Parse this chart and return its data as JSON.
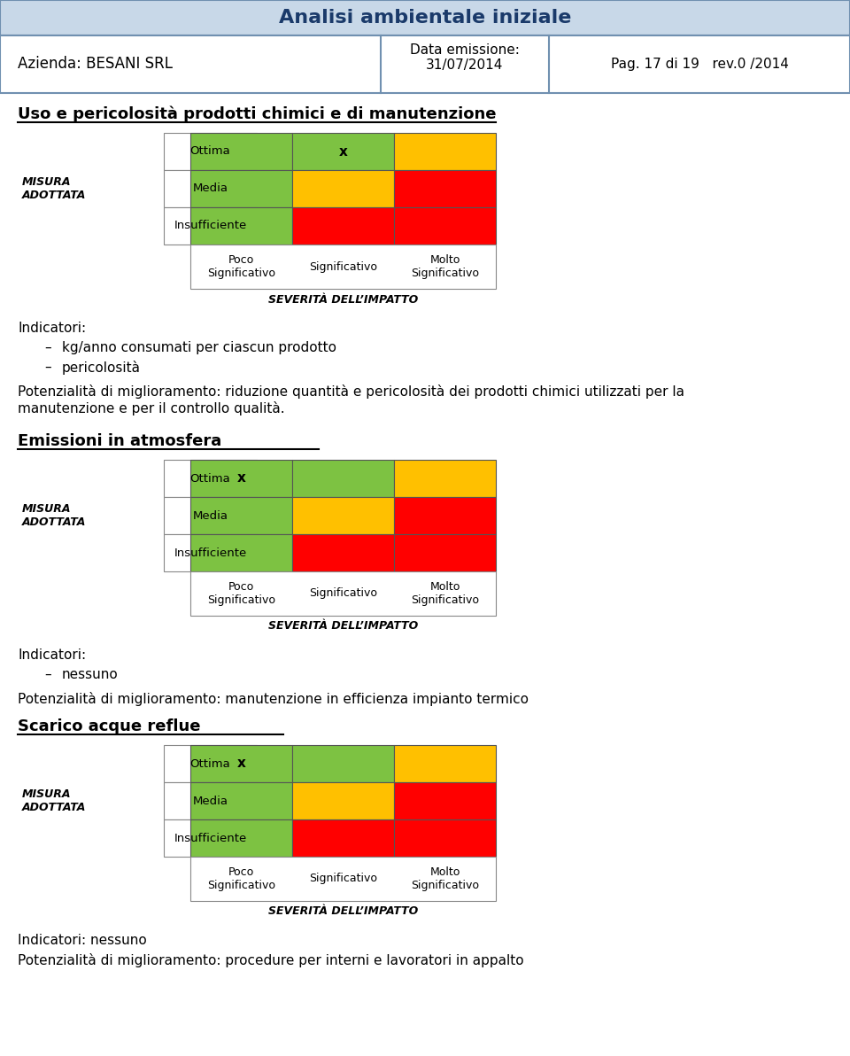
{
  "title": "Analisi ambientale iniziale",
  "header_bg": "#c8d8e8",
  "company": "Azienda: BESANI SRL",
  "date_label": "Data emissione:\n31/07/2014",
  "page_label": "Pag. 17 di 19   rev.0 /2014",
  "section1_title": "Uso e pericolosità prodotti chimici e di manutenzione",
  "section2_title": "Emissioni in atmosfera",
  "section3_title": "Scarico acque reflue",
  "misura_label": "MISURA\nADOTTATA",
  "severita_label": "SEVERITÀ DELL’IMPATTO",
  "row_labels": [
    "Ottima",
    "Media",
    "Insufficiente"
  ],
  "col_labels": [
    "Poco\nSignificativo",
    "Significativo",
    "Molto\nSignificativo"
  ],
  "green": "#7dc242",
  "yellow": "#ffc000",
  "red": "#ff0000",
  "white": "#ffffff",
  "grid1": [
    [
      "green",
      "green_x",
      "yellow"
    ],
    [
      "green",
      "yellow",
      "red"
    ],
    [
      "green",
      "red",
      "red"
    ]
  ],
  "grid2": [
    [
      "green_x",
      "green",
      "yellow"
    ],
    [
      "green",
      "yellow",
      "red"
    ],
    [
      "green",
      "red",
      "red"
    ]
  ],
  "grid3": [
    [
      "green_x",
      "green",
      "yellow"
    ],
    [
      "green",
      "yellow",
      "red"
    ],
    [
      "green",
      "red",
      "red"
    ]
  ],
  "section1_indicators": "Indicatori:",
  "section1_bullets": [
    "kg/anno consumati per ciascun prodotto",
    "pericolosità"
  ],
  "section1_potential": "Potenzialità di miglioramento: riduzione quantità e pericolosità dei prodotti chimici utilizzati per la\nmanutenzione e per il controllo qualità.",
  "section2_indicators": "Indicatori:",
  "section2_bullets": [
    "nessuno"
  ],
  "section2_potential": "Potenzialità di miglioramento: manutenzione in efficienza impianto termico",
  "section3_indicators": "Indicatori: nessuno",
  "section3_potential": "Potenzialità di miglioramento: procedure per interni e lavoratori in appalto"
}
